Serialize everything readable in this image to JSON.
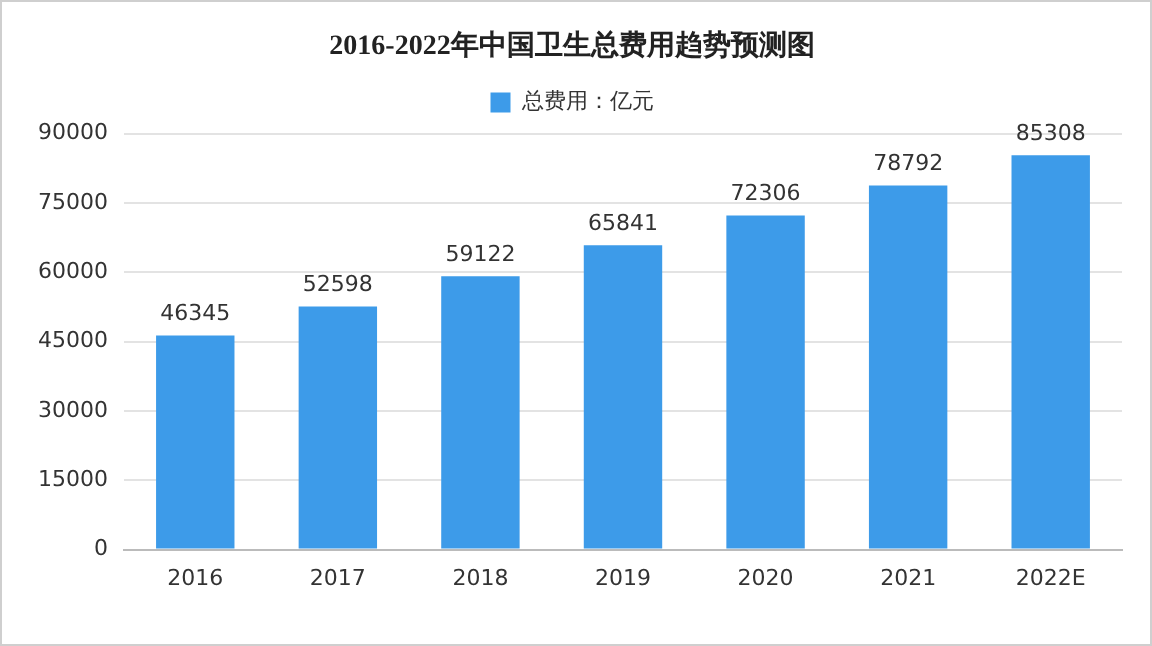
{
  "chart_data": {
    "type": "bar",
    "title": "2016-2022年中国卫生总费用趋势预测图",
    "categories": [
      "2016",
      "2017",
      "2018",
      "2019",
      "2020",
      "2021",
      "2022E"
    ],
    "series": [
      {
        "name": "总费用：亿元",
        "color": "#3d9be9",
        "values": [
          46345,
          52598,
          59122,
          65841,
          72306,
          78792,
          85308
        ]
      }
    ],
    "ylim": [
      0,
      90000
    ],
    "yticks": [
      0,
      15000,
      30000,
      45000,
      60000,
      75000,
      90000
    ],
    "grid": "y",
    "legend": "top",
    "data_labels": true
  }
}
